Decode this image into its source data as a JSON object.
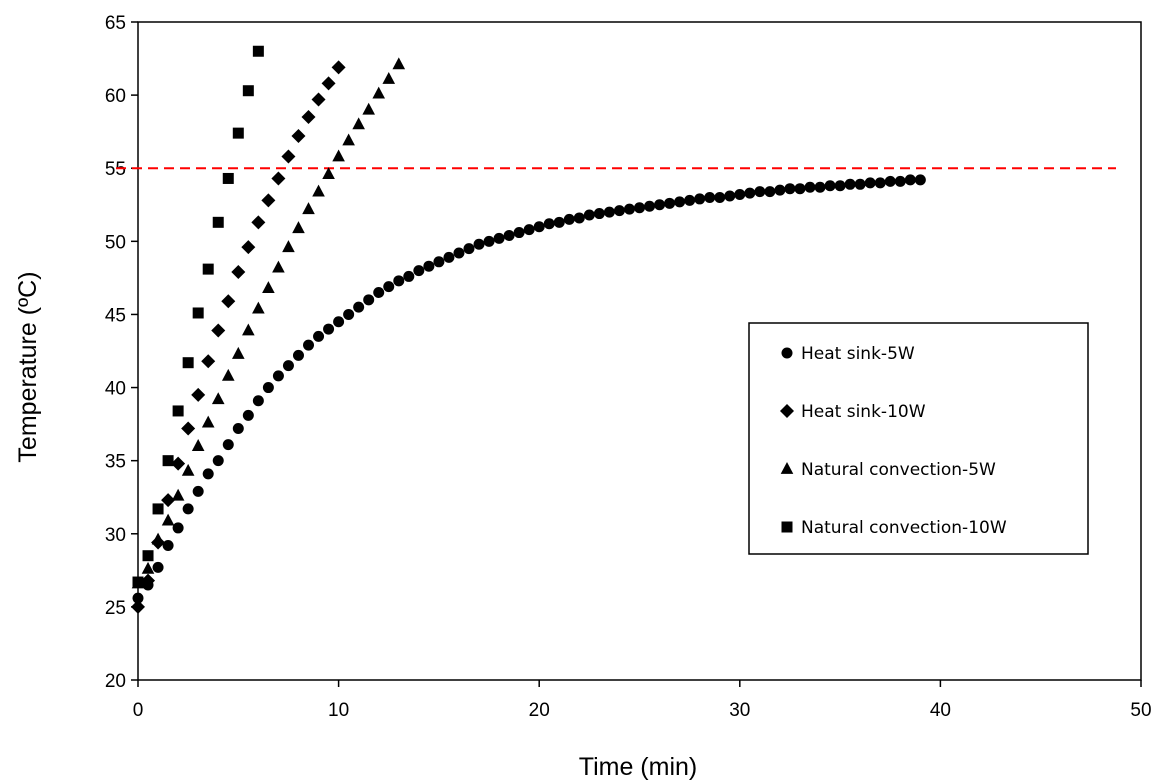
{
  "chart_data": {
    "type": "scatter",
    "title": "",
    "xlabel": "Time (min)",
    "ylabel": "Temperature (ºC)",
    "xlim": [
      0,
      50
    ],
    "ylim": [
      20,
      65
    ],
    "xticks": [
      0,
      10,
      20,
      30,
      40,
      50
    ],
    "yticks": [
      20,
      25,
      30,
      35,
      40,
      45,
      50,
      55,
      60,
      65
    ],
    "grid": false,
    "legend_position": "right",
    "reference_line": {
      "y": 55,
      "style": "dashed",
      "color": "#ff0000"
    },
    "series": [
      {
        "name": "Heat sink-5W",
        "marker": "circle",
        "color": "#000000",
        "x": [
          0,
          0.5,
          1,
          1.5,
          2,
          2.5,
          3,
          3.5,
          4,
          4.5,
          5,
          5.5,
          6,
          6.5,
          7,
          7.5,
          8,
          8.5,
          9,
          9.5,
          10,
          10.5,
          11,
          11.5,
          12,
          12.5,
          13,
          13.5,
          14,
          14.5,
          15,
          15.5,
          16,
          16.5,
          17,
          17.5,
          18,
          18.5,
          19,
          19.5,
          20,
          20.5,
          21,
          21.5,
          22,
          22.5,
          23,
          23.5,
          24,
          24.5,
          25,
          25.5,
          26,
          26.5,
          27,
          27.5,
          28,
          28.5,
          29,
          29.5,
          30,
          30.5,
          31,
          31.5,
          32,
          32.5,
          33,
          33.5,
          34,
          34.5,
          35,
          35.5,
          36,
          36.5,
          37,
          37.5,
          38,
          38.5,
          39
        ],
        "y": [
          25.6,
          26.5,
          27.7,
          29.2,
          30.4,
          31.7,
          32.9,
          34.1,
          35.0,
          36.1,
          37.2,
          38.1,
          39.1,
          40.0,
          40.8,
          41.5,
          42.2,
          42.9,
          43.5,
          44.0,
          44.5,
          45.0,
          45.5,
          46.0,
          46.5,
          46.9,
          47.3,
          47.6,
          48.0,
          48.3,
          48.6,
          48.9,
          49.2,
          49.5,
          49.8,
          50.0,
          50.2,
          50.4,
          50.6,
          50.8,
          51.0,
          51.2,
          51.3,
          51.5,
          51.6,
          51.8,
          51.9,
          52.0,
          52.1,
          52.2,
          52.3,
          52.4,
          52.5,
          52.6,
          52.7,
          52.8,
          52.9,
          53.0,
          53.0,
          53.1,
          53.2,
          53.3,
          53.4,
          53.4,
          53.5,
          53.6,
          53.6,
          53.7,
          53.7,
          53.8,
          53.8,
          53.9,
          53.9,
          54.0,
          54.0,
          54.1,
          54.1,
          54.2,
          54.2
        ]
      },
      {
        "name": "Heat sink-10W",
        "marker": "diamond",
        "color": "#000000",
        "x": [
          0,
          0.5,
          1,
          1.5,
          2,
          2.5,
          3,
          3.5,
          4,
          4.5,
          5,
          5.5,
          6,
          6.5,
          7,
          7.5,
          8,
          8.5,
          9,
          9.5,
          10
        ],
        "y": [
          25.0,
          26.8,
          29.4,
          32.3,
          34.8,
          37.2,
          39.5,
          41.8,
          43.9,
          45.9,
          47.9,
          49.6,
          51.3,
          52.8,
          54.3,
          55.8,
          57.2,
          58.5,
          59.7,
          60.8,
          61.9
        ]
      },
      {
        "name": "Natural convection-5W",
        "marker": "triangle",
        "color": "#000000",
        "x": [
          0,
          0.5,
          1,
          1.5,
          2,
          2.5,
          3,
          3.5,
          4,
          4.5,
          5,
          5.5,
          6,
          6.5,
          7,
          7.5,
          8,
          8.5,
          9,
          9.5,
          10,
          10.5,
          11,
          11.5,
          12,
          12.5,
          13
        ],
        "y": [
          26.6,
          27.6,
          29.6,
          30.9,
          32.6,
          34.3,
          36.0,
          37.6,
          39.2,
          40.8,
          42.3,
          43.9,
          45.4,
          46.8,
          48.2,
          49.6,
          50.9,
          52.2,
          53.4,
          54.6,
          55.8,
          56.9,
          58.0,
          59.0,
          60.1,
          61.1,
          62.1
        ]
      },
      {
        "name": "Natural convection-10W",
        "marker": "square",
        "color": "#000000",
        "x": [
          0,
          0.5,
          1,
          1.5,
          2,
          2.5,
          3,
          3.5,
          4,
          4.5,
          5,
          5.5,
          6
        ],
        "y": [
          26.7,
          28.5,
          31.7,
          35.0,
          38.4,
          41.7,
          45.1,
          48.1,
          51.3,
          54.3,
          57.4,
          60.3,
          63.0
        ]
      }
    ]
  }
}
